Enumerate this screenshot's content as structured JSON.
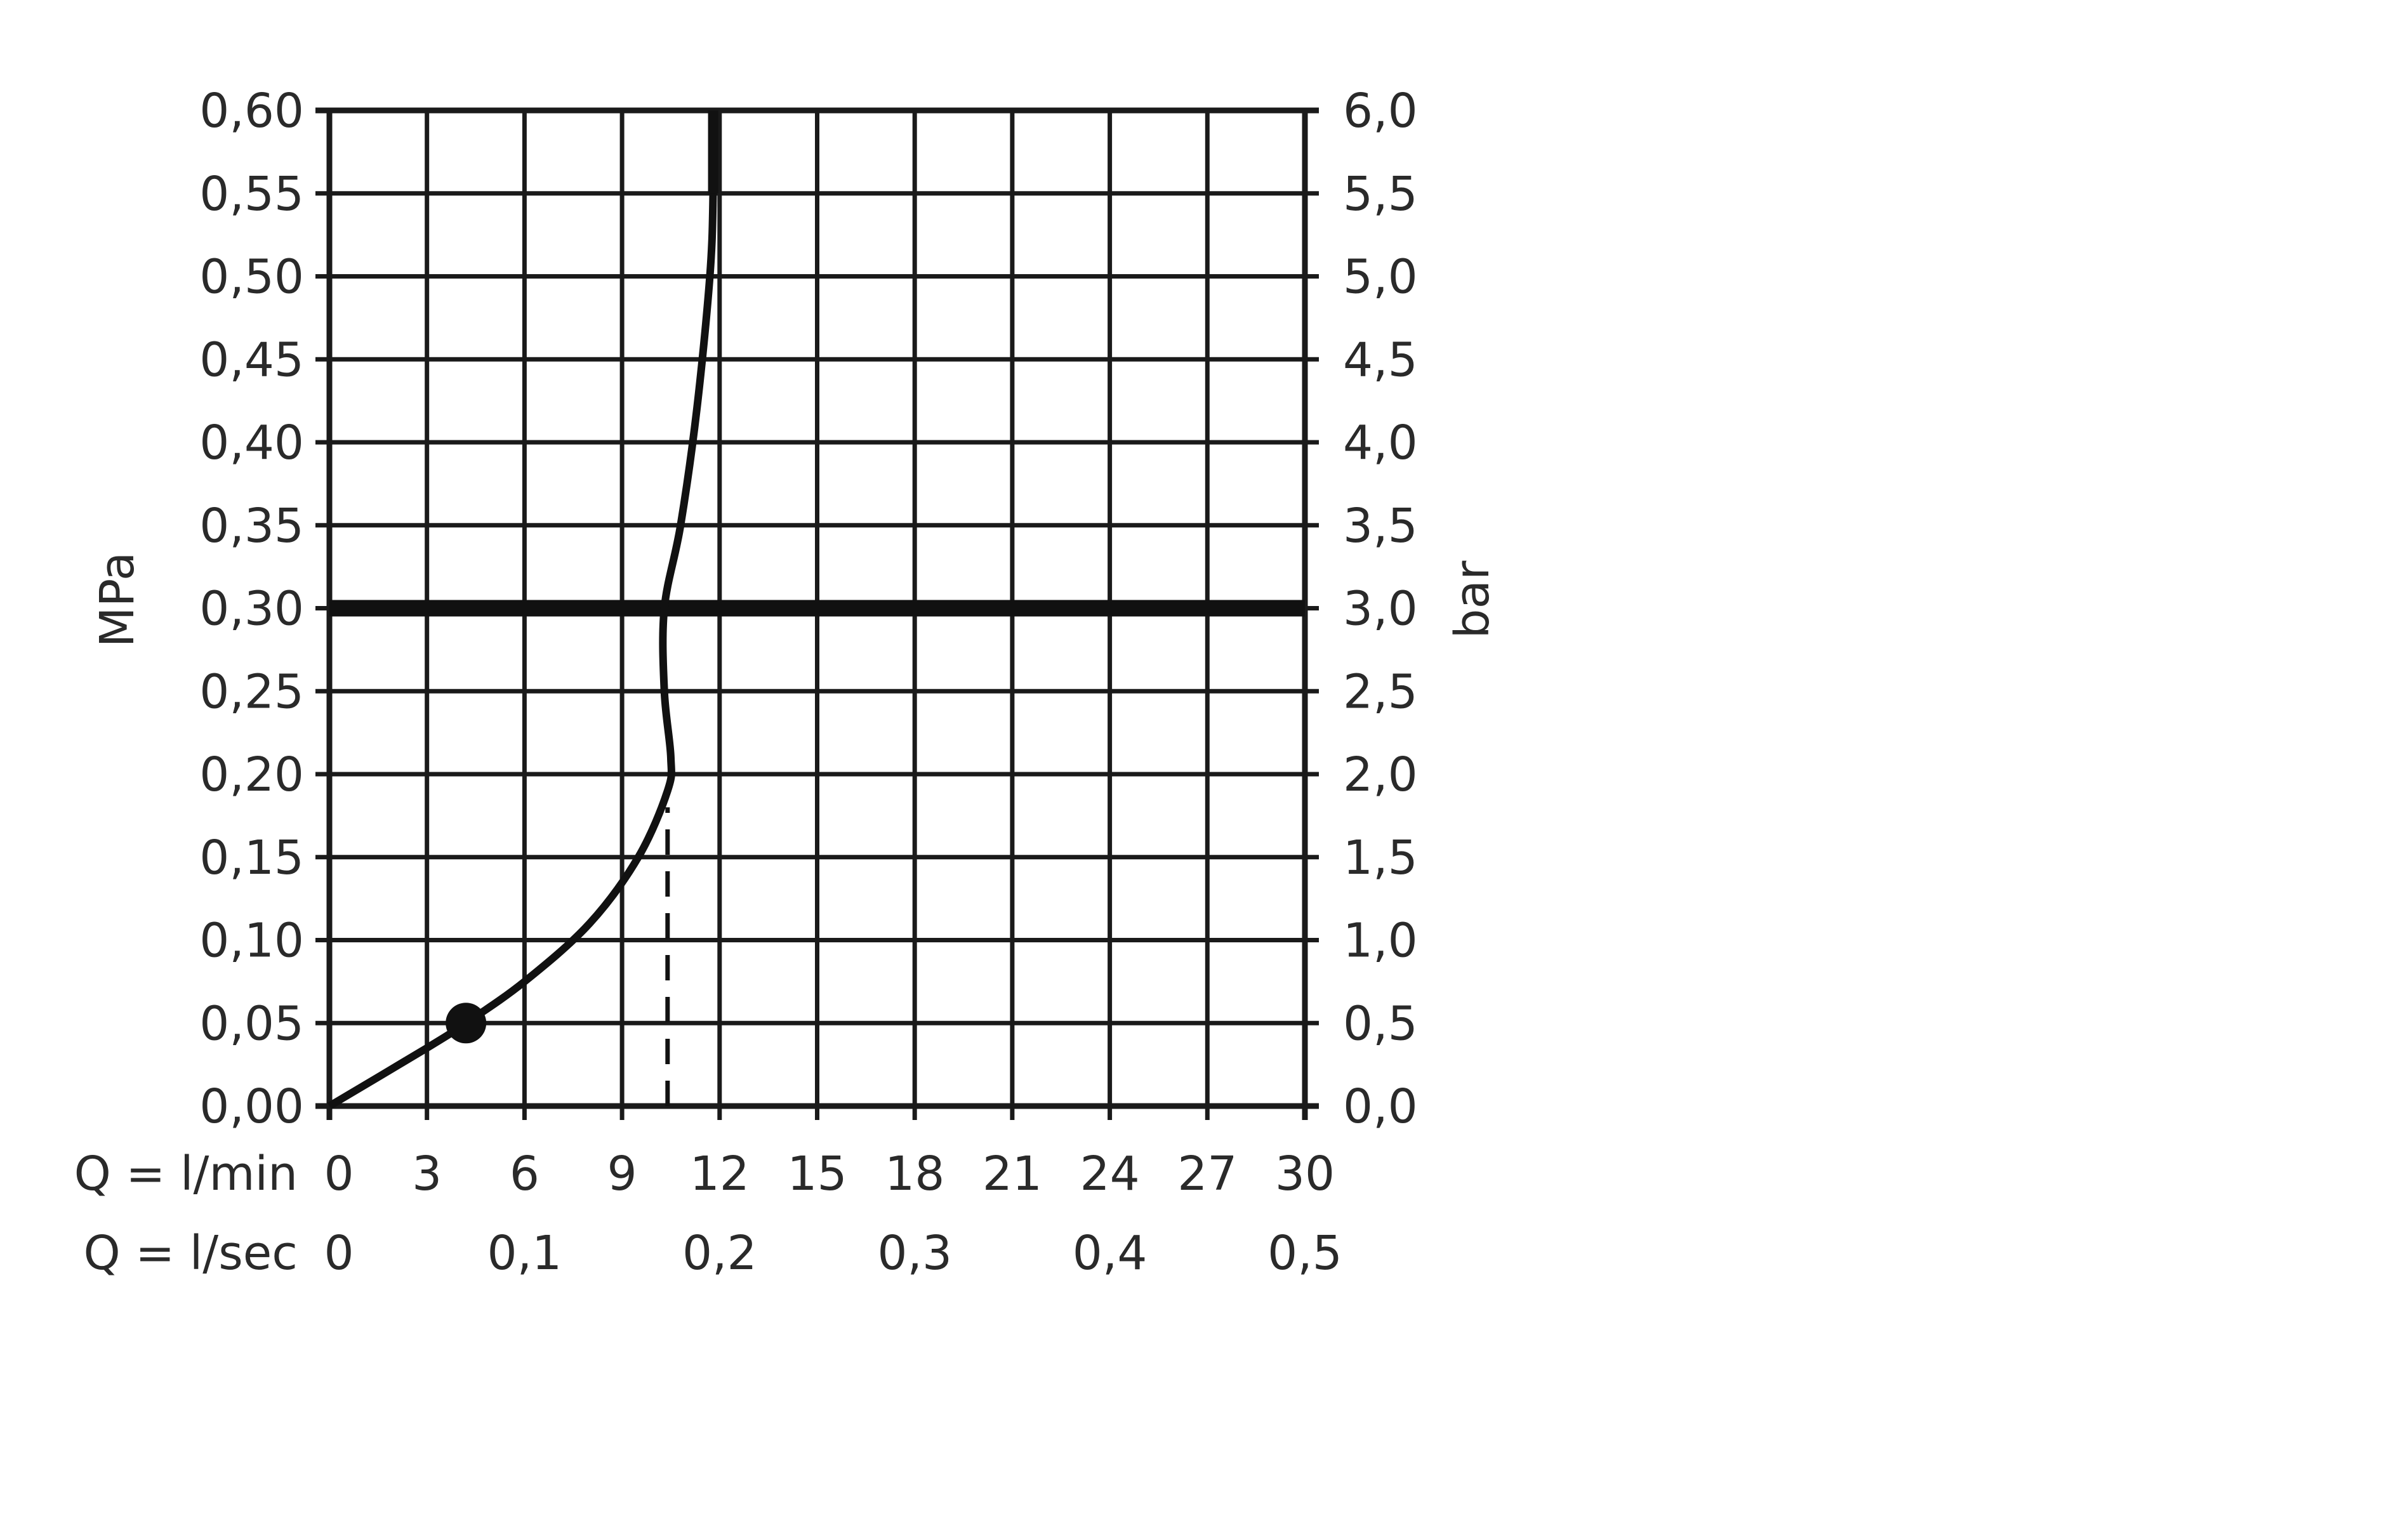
{
  "chart_data": {
    "type": "line",
    "title": "",
    "ylabel_left": "MPa",
    "ylabel_right": "bar",
    "xlabel_rows": [
      {
        "label": "Q = l/min",
        "ticks": [
          "0",
          "3",
          "6",
          "9",
          "12",
          "15",
          "18",
          "21",
          "24",
          "27",
          "30"
        ],
        "values": [
          0,
          3,
          6,
          9,
          12,
          15,
          18,
          21,
          24,
          27,
          30
        ]
      },
      {
        "label": "Q = l/sec",
        "ticks": [
          "0",
          "0,1",
          "0,2",
          "0,3",
          "0,4",
          "0,5"
        ],
        "values": [
          0,
          6,
          12,
          18,
          24,
          30
        ]
      }
    ],
    "xlim": [
      0,
      30
    ],
    "ylim": [
      0,
      0.6
    ],
    "yticks_left": [
      "0,00",
      "0,05",
      "0,10",
      "0,15",
      "0,20",
      "0,25",
      "0,30",
      "0,35",
      "0,40",
      "0,45",
      "0,50",
      "0,55",
      "0,60"
    ],
    "yticks_right": [
      "0,0",
      "0,5",
      "1,0",
      "1,5",
      "2,0",
      "2,5",
      "3,0",
      "3,5",
      "4,0",
      "4,5",
      "5,0",
      "5,5",
      "6,0"
    ],
    "grid": true,
    "series": [
      {
        "x": [
          0,
          3,
          4.2,
          6,
          8,
          9.5,
          10.4,
          10.5,
          10.3,
          10.3,
          10.8,
          11.3,
          11.7,
          11.8,
          11.8
        ],
        "y": [
          0,
          0.035,
          0.05,
          0.075,
          0.11,
          0.15,
          0.19,
          0.21,
          0.25,
          0.3,
          0.35,
          0.42,
          0.5,
          0.55,
          0.6
        ]
      }
    ],
    "marker_point": {
      "x": 4.2,
      "y": 0.05
    },
    "reference_line_y": 0.3,
    "dashed_line_x": {
      "x": 10.4,
      "y_from": 0,
      "y_to": 0.18
    },
    "colors": {
      "line": "#111111",
      "grid": "#1a1a1a",
      "text": "#2a2a2a"
    }
  }
}
